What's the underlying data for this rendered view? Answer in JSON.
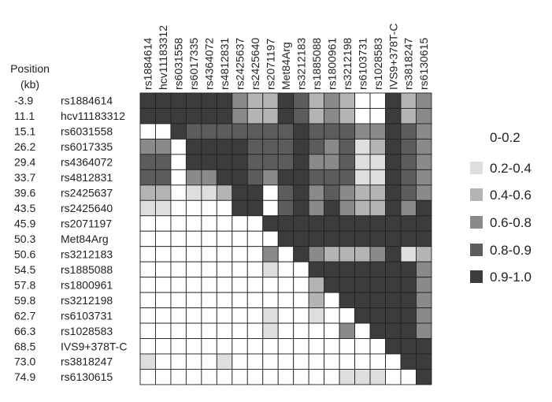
{
  "chart_data": {
    "type": "heatmap",
    "position_header": [
      "Position",
      "(kb)"
    ],
    "snps": [
      "rs1884614",
      "hcv11183312",
      "rs6031558",
      "rs6017335",
      "rs4364072",
      "rs4812831",
      "rs2425637",
      "rs2425640",
      "rs2071197",
      "Met84Arg",
      "rs3212183",
      "rs1885088",
      "rs1800961",
      "rs3212198",
      "rs6103731",
      "rs1028583",
      "IVS9+378T-C",
      "rs3818247",
      "rs6130615"
    ],
    "positions": [
      "-3.9",
      "11.1",
      "15.1",
      "26.2",
      "29.4",
      "33.7",
      "39.6",
      "43.5",
      "45.9",
      "50.3",
      "50.6",
      "54.5",
      "57.8",
      "59.8",
      "62.7",
      "66.3",
      "68.5",
      "73.0",
      "74.9"
    ],
    "legend": [
      {
        "label": "0-0.2",
        "color": "#ffffff"
      },
      {
        "label": "0.2-0.4",
        "color": "#dedede"
      },
      {
        "label": "0.4-0.6",
        "color": "#b4b4b4"
      },
      {
        "label": "0.6-0.8",
        "color": "#8a8a8a"
      },
      {
        "label": "0.8-0.9",
        "color": "#5c5c5c"
      },
      {
        "label": "0.9-1.0",
        "color": "#3c3c3c"
      }
    ],
    "matrix": [
      [
        5,
        5,
        5,
        5,
        5,
        5,
        3,
        2,
        2,
        5,
        4,
        2,
        3,
        2,
        0,
        0,
        5,
        2,
        3
      ],
      [
        5,
        5,
        5,
        5,
        5,
        5,
        3,
        2,
        2,
        5,
        4,
        2,
        3,
        2,
        0,
        0,
        5,
        2,
        3
      ],
      [
        0,
        0,
        5,
        4,
        4,
        4,
        4,
        4,
        4,
        4,
        5,
        4,
        4,
        4,
        3,
        3,
        5,
        4,
        3
      ],
      [
        3,
        3,
        0,
        5,
        5,
        5,
        5,
        4,
        4,
        4,
        5,
        4,
        3,
        4,
        1,
        2,
        5,
        4,
        3
      ],
      [
        4,
        4,
        0,
        5,
        5,
        5,
        5,
        4,
        4,
        4,
        5,
        3,
        3,
        4,
        1,
        1,
        5,
        4,
        3
      ],
      [
        4,
        4,
        0,
        3,
        3,
        5,
        5,
        4,
        3,
        5,
        5,
        4,
        4,
        4,
        1,
        1,
        5,
        4,
        3
      ],
      [
        2,
        2,
        0,
        1,
        1,
        2,
        5,
        5,
        0,
        4,
        5,
        3,
        4,
        3,
        2,
        2,
        5,
        4,
        3
      ],
      [
        1,
        1,
        0,
        0,
        0,
        0,
        5,
        5,
        0,
        4,
        5,
        3,
        5,
        3,
        2,
        2,
        5,
        3,
        5
      ],
      [
        0,
        0,
        0,
        0,
        0,
        0,
        0,
        0,
        5,
        5,
        5,
        5,
        5,
        5,
        5,
        5,
        5,
        5,
        5
      ],
      [
        0,
        0,
        0,
        0,
        0,
        0,
        0,
        0,
        0,
        5,
        5,
        5,
        5,
        5,
        5,
        5,
        5,
        5,
        5
      ],
      [
        0,
        0,
        0,
        0,
        0,
        0,
        0,
        0,
        3,
        0,
        5,
        3,
        2,
        2,
        2,
        3,
        5,
        1,
        2
      ],
      [
        0,
        0,
        0,
        0,
        0,
        0,
        0,
        0,
        1,
        0,
        0,
        5,
        5,
        5,
        5,
        5,
        5,
        5,
        3
      ],
      [
        0,
        0,
        0,
        0,
        0,
        0,
        0,
        0,
        0,
        0,
        0,
        2,
        5,
        5,
        5,
        5,
        5,
        5,
        3
      ],
      [
        0,
        0,
        0,
        0,
        0,
        0,
        0,
        0,
        0,
        0,
        0,
        2,
        0,
        5,
        5,
        5,
        5,
        5,
        3
      ],
      [
        0,
        0,
        0,
        0,
        0,
        0,
        0,
        0,
        1,
        0,
        0,
        1,
        0,
        0,
        5,
        5,
        5,
        5,
        3
      ],
      [
        0,
        0,
        0,
        0,
        0,
        0,
        0,
        0,
        1,
        0,
        0,
        0,
        0,
        3,
        0,
        5,
        5,
        5,
        3
      ],
      [
        0,
        0,
        0,
        0,
        0,
        0,
        0,
        0,
        0,
        0,
        0,
        0,
        0,
        0,
        0,
        0,
        5,
        5,
        5
      ],
      [
        1,
        0,
        0,
        0,
        0,
        1,
        0,
        0,
        0,
        0,
        0,
        0,
        0,
        0,
        0,
        0,
        0,
        5,
        5
      ],
      [
        0,
        0,
        0,
        0,
        0,
        0,
        0,
        0,
        0,
        0,
        0,
        0,
        0,
        1,
        1,
        1,
        0,
        0,
        5
      ]
    ]
  }
}
